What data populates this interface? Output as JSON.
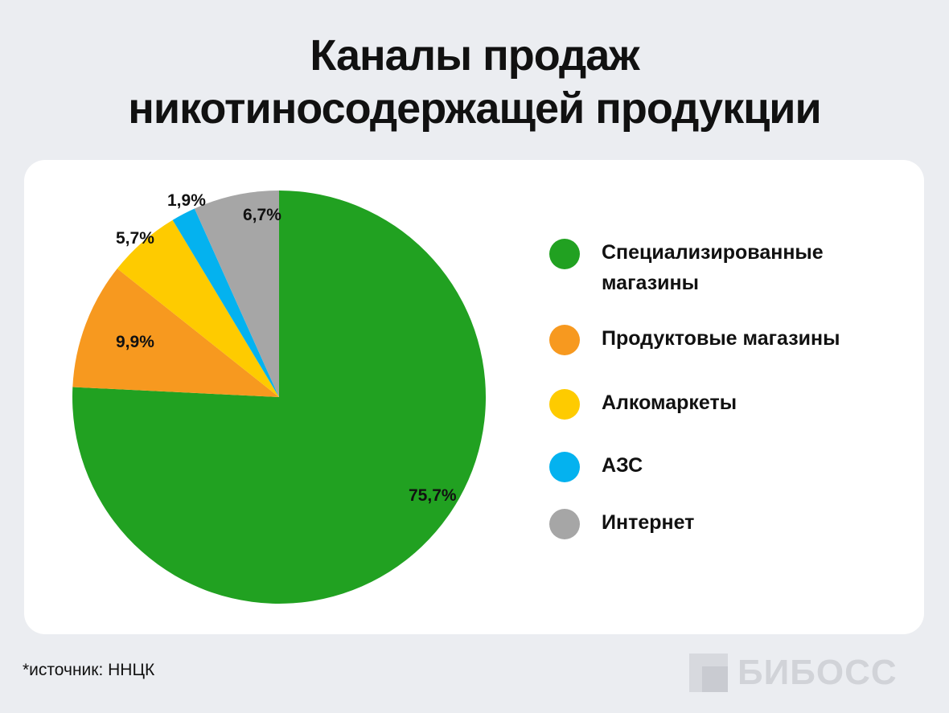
{
  "title_line1": "Каналы продаж",
  "title_line2": "никотиносодержащей продукции",
  "chart_data": {
    "type": "pie",
    "title": "Каналы продаж никотиносодержащей продукции",
    "categories": [
      "Специализированные магазины",
      "Продуктовые магазины",
      "Алкомаркеты",
      "АЗС",
      "Интернет"
    ],
    "values": [
      75.7,
      9.9,
      5.7,
      1.9,
      6.7
    ],
    "labels": [
      "75,7%",
      "9,9%",
      "5,7%",
      "1,9%",
      "6,7%"
    ],
    "colors": [
      "#21a121",
      "#f7991f",
      "#fecb00",
      "#04b2ef",
      "#a6a6a6"
    ],
    "legend_position": "right",
    "start_angle_deg": 0,
    "direction": "clockwise"
  },
  "source": "*источник: ННЦК",
  "logo": "БИБОСС"
}
